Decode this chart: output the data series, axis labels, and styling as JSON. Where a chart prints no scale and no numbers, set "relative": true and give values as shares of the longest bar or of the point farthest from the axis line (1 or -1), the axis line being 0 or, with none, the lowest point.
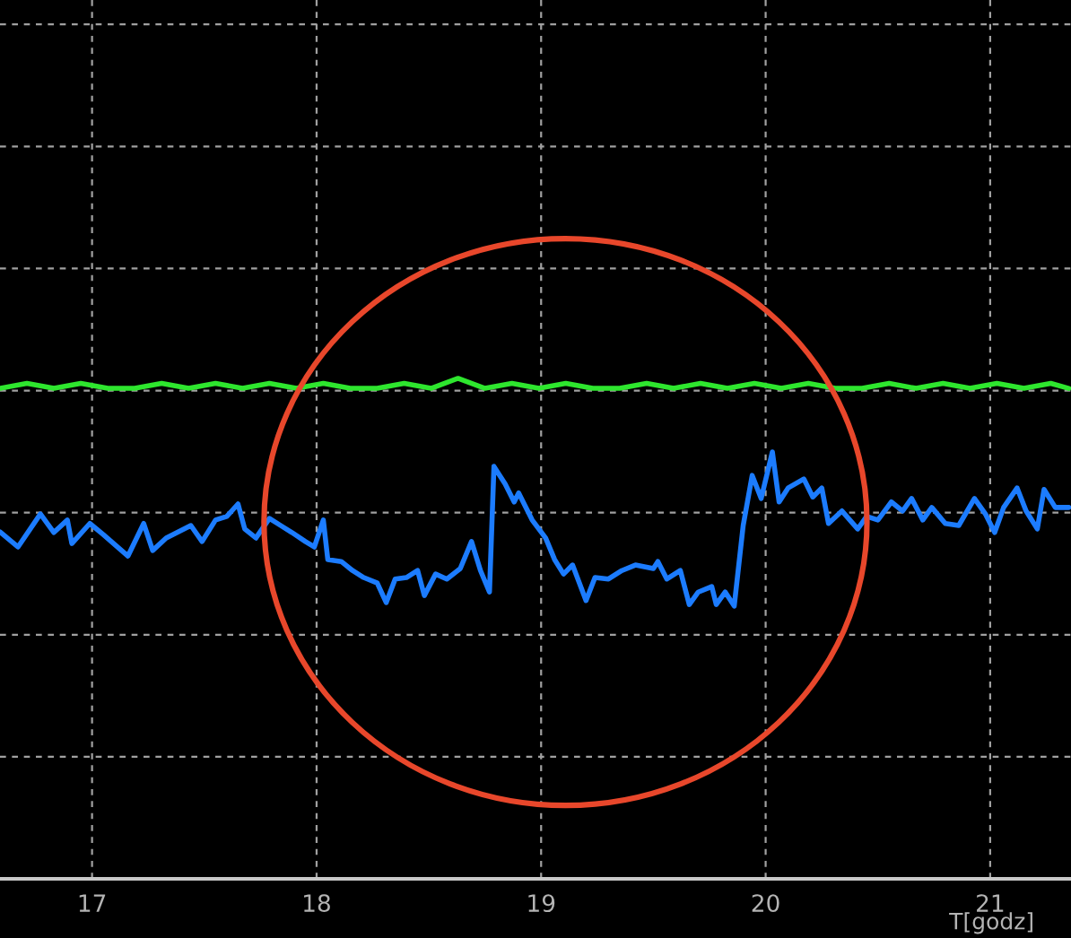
{
  "chart_data": {
    "type": "line",
    "relative": true,
    "xlabel": "T[godz]",
    "xlim": [
      16.59,
      21.36
    ],
    "xticks": [
      17,
      18,
      19,
      20,
      21
    ],
    "grid": true,
    "tick_labels": "x",
    "marker": "none",
    "line_style": "solid",
    "series": [
      {
        "color": "#2ee62e",
        "x": [
          16.59,
          16.71,
          16.83,
          16.95,
          17.07,
          17.19,
          17.31,
          17.43,
          17.55,
          17.67,
          17.79,
          17.91,
          18.03,
          18.15,
          18.27,
          18.39,
          18.51,
          18.63,
          18.75,
          18.87,
          18.99,
          19.11,
          19.23,
          19.35,
          19.47,
          19.59,
          19.71,
          19.83,
          19.95,
          20.07,
          20.19,
          20.31,
          20.43,
          20.55,
          20.67,
          20.79,
          20.91,
          21.03,
          21.15,
          21.27,
          21.35
        ],
        "values": [
          0.98,
          0.99,
          0.98,
          0.99,
          0.98,
          0.98,
          0.99,
          0.98,
          0.99,
          0.98,
          0.99,
          0.98,
          0.99,
          0.98,
          0.98,
          0.99,
          0.98,
          1.0,
          0.98,
          0.99,
          0.98,
          0.99,
          0.98,
          0.98,
          0.99,
          0.98,
          0.99,
          0.98,
          0.99,
          0.98,
          0.99,
          0.98,
          0.98,
          0.99,
          0.98,
          0.99,
          0.98,
          0.99,
          0.98,
          0.99,
          0.98
        ]
      },
      {
        "color": "#1c7cff",
        "x": [
          16.59,
          16.67,
          16.77,
          16.83,
          16.89,
          16.91,
          16.99,
          17.05,
          17.16,
          17.23,
          17.27,
          17.33,
          17.44,
          17.49,
          17.55,
          17.6,
          17.65,
          17.68,
          17.73,
          17.79,
          17.84,
          17.89,
          17.95,
          17.99,
          18.03,
          18.05,
          18.11,
          18.16,
          18.21,
          18.27,
          18.31,
          18.35,
          18.4,
          18.45,
          18.48,
          18.53,
          18.58,
          18.64,
          18.69,
          18.73,
          18.77,
          18.79,
          18.84,
          18.88,
          18.9,
          18.96,
          19.02,
          19.06,
          19.1,
          19.14,
          19.2,
          19.24,
          19.3,
          19.36,
          19.42,
          19.5,
          19.52,
          19.56,
          19.62,
          19.66,
          19.7,
          19.76,
          19.78,
          19.82,
          19.86,
          19.9,
          19.94,
          19.98,
          20.03,
          20.06,
          20.1,
          20.17,
          20.21,
          20.25,
          20.28,
          20.34,
          20.41,
          20.45,
          20.5,
          20.56,
          20.61,
          20.65,
          20.7,
          20.74,
          20.8,
          20.86,
          20.93,
          20.98,
          21.02,
          21.06,
          21.12,
          21.16,
          21.21,
          21.24,
          21.29,
          21.35
        ],
        "values": [
          0.693,
          0.663,
          0.729,
          0.692,
          0.717,
          0.67,
          0.71,
          0.688,
          0.645,
          0.71,
          0.656,
          0.681,
          0.706,
          0.674,
          0.717,
          0.724,
          0.749,
          0.699,
          0.681,
          0.72,
          0.706,
          0.692,
          0.674,
          0.663,
          0.717,
          0.638,
          0.634,
          0.616,
          0.602,
          0.591,
          0.552,
          0.599,
          0.602,
          0.616,
          0.566,
          0.609,
          0.599,
          0.62,
          0.674,
          0.616,
          0.573,
          0.824,
          0.789,
          0.753,
          0.771,
          0.717,
          0.681,
          0.638,
          0.609,
          0.627,
          0.556,
          0.602,
          0.599,
          0.616,
          0.627,
          0.62,
          0.634,
          0.599,
          0.616,
          0.548,
          0.573,
          0.584,
          0.548,
          0.573,
          0.545,
          0.706,
          0.806,
          0.76,
          0.853,
          0.753,
          0.781,
          0.799,
          0.763,
          0.781,
          0.71,
          0.735,
          0.699,
          0.724,
          0.717,
          0.753,
          0.735,
          0.76,
          0.717,
          0.742,
          0.71,
          0.706,
          0.76,
          0.728,
          0.692,
          0.742,
          0.781,
          0.735,
          0.699,
          0.778,
          0.742,
          0.742
        ]
      }
    ]
  }
}
